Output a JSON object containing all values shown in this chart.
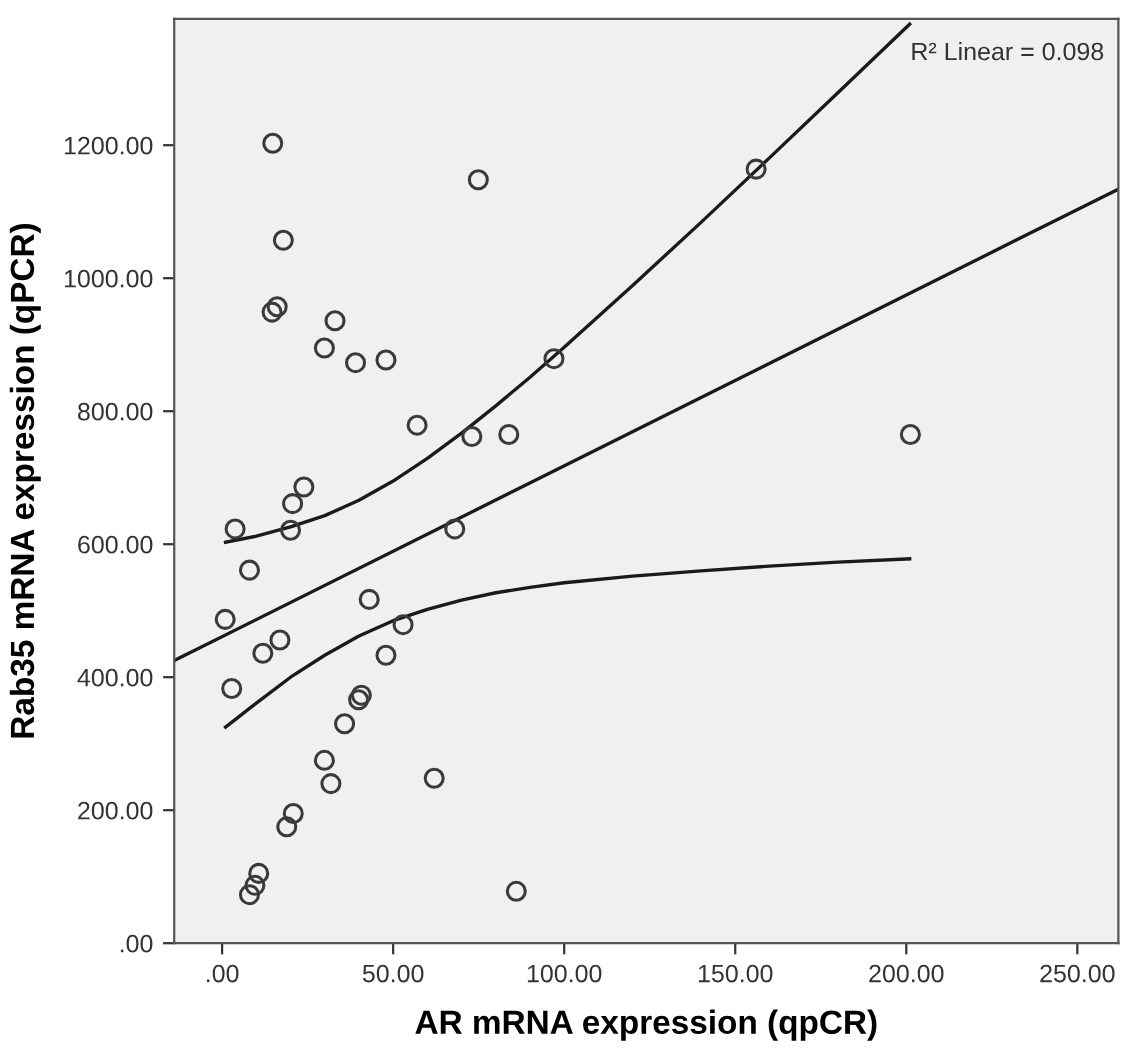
{
  "chart_data": {
    "type": "scatter",
    "xlabel": "AR mRNA expression (qpCR)",
    "ylabel": "Rab35 mRNA expression (qPCR)",
    "annotations": [
      "R² Linear = 0.098"
    ],
    "xlim": [
      -14,
      262
    ],
    "ylim": [
      0,
      1390
    ],
    "xticks": [
      {
        "value": 0,
        "label": ".00"
      },
      {
        "value": 50,
        "label": "50.00"
      },
      {
        "value": 100,
        "label": "100.00"
      },
      {
        "value": 150,
        "label": "150.00"
      },
      {
        "value": 200,
        "label": "200.00"
      },
      {
        "value": 250,
        "label": "250.00"
      }
    ],
    "yticks": [
      {
        "value": 0,
        "label": ".00"
      },
      {
        "value": 200,
        "label": "200.00"
      },
      {
        "value": 400,
        "label": "400.00"
      },
      {
        "value": 600,
        "label": "600.00"
      },
      {
        "value": 800,
        "label": "800.00"
      },
      {
        "value": 1000,
        "label": "1000.00"
      },
      {
        "value": 1200,
        "label": "1200.00"
      }
    ],
    "grid": false,
    "legend": false,
    "series": [
      {
        "marker": "circle",
        "color": "#3a3a3a",
        "x": [
          14.8,
          74.9,
          17.9,
          16.1,
          14.6,
          33.0,
          29.9,
          39.0,
          47.9,
          97.0,
          57.0,
          73.0,
          83.8,
          23.9,
          20.6,
          156.1,
          201.2,
          3.8,
          20.0,
          68.0,
          8.0,
          0.9,
          43.0,
          52.9,
          16.9,
          11.9,
          47.9,
          2.8,
          40.7,
          39.9,
          35.8,
          29.9,
          31.8,
          62.0,
          20.8,
          18.9,
          10.7,
          9.6,
          8.0,
          86.0
        ],
        "values": [
          1203,
          1148,
          1057,
          957,
          949,
          936,
          895,
          873,
          877,
          879,
          779,
          762,
          765,
          686,
          661,
          1164,
          765,
          623,
          621,
          623,
          561,
          487,
          517,
          479,
          456,
          436,
          433,
          383,
          373,
          366,
          330,
          275,
          240,
          248,
          195,
          175,
          105,
          87,
          73,
          78
        ]
      },
      {
        "type": "line",
        "line_style": "solid",
        "color": "#1a1a1a",
        "x": [
          -14,
          262
        ],
        "values": [
          425,
          1134
        ]
      },
      {
        "type": "line",
        "line_style": "solid",
        "color": "#1a1a1a",
        "x": [
          1,
          10,
          20,
          30,
          40,
          50,
          60,
          70,
          80,
          90,
          100,
          120,
          140,
          160,
          180,
          201
        ],
        "values": [
          603,
          612,
          626,
          643,
          666,
          695,
          729,
          767,
          808,
          851,
          896,
          989,
          1084,
          1181,
          1279,
          1382
        ]
      },
      {
        "type": "line",
        "line_style": "solid",
        "color": "#1a1a1a",
        "x": [
          1,
          10,
          20,
          30,
          40,
          50,
          60,
          70,
          80,
          90,
          100,
          120,
          140,
          160,
          180,
          201
        ],
        "values": [
          325,
          361,
          400,
          433,
          462,
          485,
          502,
          516,
          527,
          535,
          542,
          552,
          560,
          567,
          573,
          578
        ]
      }
    ]
  }
}
